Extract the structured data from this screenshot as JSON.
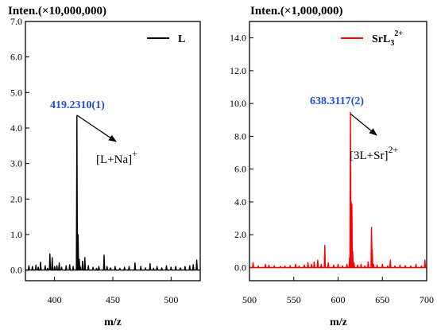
{
  "colors": {
    "left_series": "#000000",
    "right_series": "#ff0000",
    "peak_label": "#1f4fd8"
  },
  "chart_data": [
    {
      "type": "line",
      "title": "Inten.(×10,000,000)",
      "xlabel": "m/z",
      "ylabel": "",
      "xlim": [
        375,
        525
      ],
      "ylim": [
        -0.3,
        7.0
      ],
      "xticks": [
        400,
        450,
        500
      ],
      "yticks": [
        0.0,
        1.0,
        2.0,
        3.0,
        4.0,
        5.0,
        6.0,
        7.0
      ],
      "ytick_labels": [
        "0.0",
        "1.0",
        "2.0",
        "3.0",
        "4.0",
        "5.0",
        "6.0",
        "7.0"
      ],
      "legend": {
        "position": "top-right",
        "label": "L"
      },
      "peak_label": "419.2310(1)",
      "ion_main": "[L+Na]",
      "ion_sup": "+",
      "series": [
        {
          "name": "L",
          "color": "#000000",
          "x": [
            378,
            381,
            384,
            386,
            388,
            392,
            394,
            396,
            398,
            400,
            402,
            404,
            406,
            410,
            413,
            416,
            419.2,
            420.2,
            421.2,
            422,
            424,
            426,
            429,
            433,
            436,
            438,
            442.5,
            445,
            448,
            452,
            456,
            460,
            464,
            469,
            474,
            478,
            482,
            485,
            488,
            492,
            496,
            500,
            504,
            508,
            512,
            516,
            519,
            522
          ],
          "y": [
            0.12,
            0.1,
            0.14,
            0.08,
            0.22,
            0.12,
            0.05,
            0.45,
            0.35,
            0.1,
            0.12,
            0.2,
            0.08,
            0.12,
            0.15,
            0.1,
            4.35,
            1.0,
            0.3,
            0.1,
            0.25,
            0.35,
            0.12,
            0.08,
            0.05,
            0.1,
            0.42,
            0.1,
            0.06,
            0.1,
            0.05,
            0.08,
            0.1,
            0.2,
            0.1,
            0.06,
            0.18,
            0.05,
            0.1,
            0.06,
            0.12,
            0.08,
            0.1,
            0.06,
            0.1,
            0.12,
            0.15,
            0.28
          ]
        }
      ]
    },
    {
      "type": "line",
      "title": "Inten.(×1,000,000)",
      "xlabel": "m/z",
      "ylabel": "",
      "xlim": [
        500,
        700
      ],
      "ylim": [
        -0.8,
        15.0
      ],
      "xticks": [
        500,
        550,
        600,
        650,
        700
      ],
      "yticks": [
        0.0,
        2.0,
        4.0,
        6.0,
        8.0,
        10.0,
        12.0,
        14.0
      ],
      "ytick_labels": [
        "0.0",
        "2.0",
        "4.0",
        "6.0",
        "8.0",
        "10.0",
        "12.0",
        "14.0"
      ],
      "legend": {
        "position": "top-right",
        "label_main": "SrL",
        "label_sub": "3",
        "label_sup": "2+"
      },
      "peak_label": "638.3117(2)",
      "ion_main": "[3L+Sr]",
      "ion_sup": "2+",
      "series": [
        {
          "name": "SrL3 2+",
          "color": "#ff0000",
          "x": [
            504,
            510,
            518,
            522,
            528,
            535,
            540,
            546,
            552,
            556,
            562,
            566,
            570,
            573,
            577,
            581,
            585,
            589,
            595,
            600,
            605,
            610,
            613,
            614,
            614.8,
            615.6,
            616.5,
            618,
            622,
            626,
            630,
            634,
            637.8,
            638.6,
            640,
            644,
            650,
            656,
            659,
            664,
            670,
            676,
            682,
            688,
            694,
            698
          ],
          "y": [
            0.3,
            0.1,
            0.2,
            0.15,
            0.1,
            0.08,
            0.1,
            0.12,
            0.2,
            0.1,
            0.15,
            0.3,
            0.2,
            0.35,
            0.45,
            0.2,
            1.35,
            0.3,
            0.15,
            0.2,
            0.1,
            0.2,
            0.6,
            9.45,
            4.0,
            3.85,
            1.0,
            0.3,
            0.15,
            0.2,
            0.1,
            0.35,
            2.45,
            1.1,
            0.2,
            0.15,
            0.2,
            0.1,
            0.45,
            0.1,
            0.15,
            0.12,
            0.1,
            0.2,
            0.1,
            0.45
          ]
        }
      ]
    }
  ]
}
